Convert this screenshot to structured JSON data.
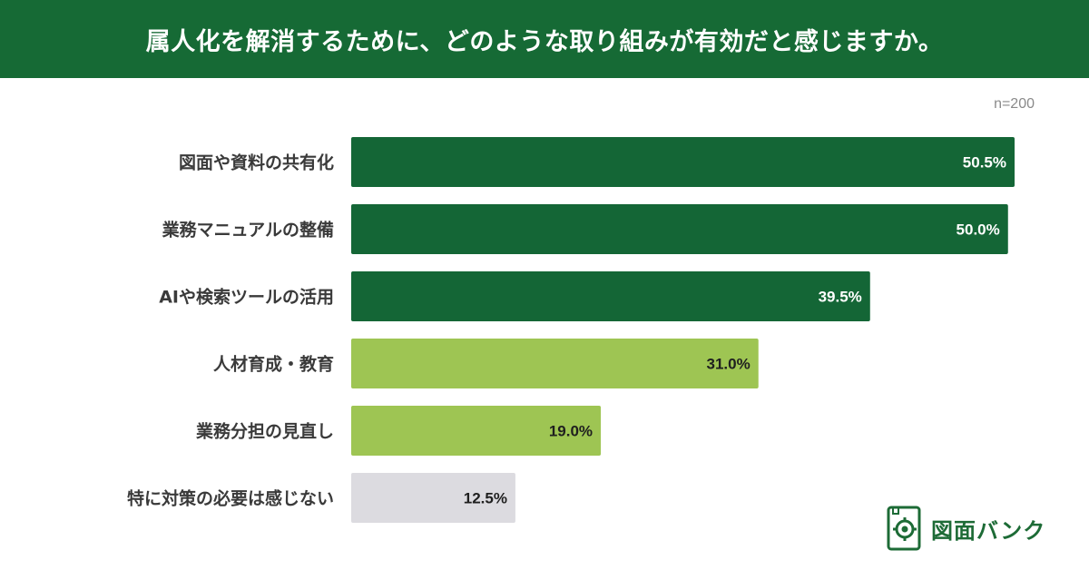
{
  "title": "属人化を解消するために、どのような取り組みが有効だと感じますか。",
  "sample_size": "n=200",
  "logo": {
    "text": "図面バンク",
    "icon": "gear-document-icon"
  },
  "colors": {
    "title_bg": "#166a35",
    "dark_green": "#146636",
    "light_green": "#9ec553",
    "gray": "#dcdbe0"
  },
  "chart_data": {
    "type": "bar",
    "orientation": "horizontal",
    "categories": [
      "図面や資料の共有化",
      "業務マニュアルの整備",
      "AIや検索ツールの活用",
      "人材育成・教育",
      "業務分担の見直し",
      "特に対策の必要は感じない"
    ],
    "values": [
      50.5,
      50.0,
      39.5,
      31.0,
      19.0,
      12.5
    ],
    "value_labels": [
      "50.5%",
      "50.0%",
      "39.5%",
      "31.0%",
      "19.0%",
      "12.5%"
    ],
    "bar_colors": [
      "#146636",
      "#146636",
      "#146636",
      "#9ec553",
      "#9ec553",
      "#dcdbe0"
    ],
    "label_colors": [
      "#ffffff",
      "#ffffff",
      "#ffffff",
      "#1f1f1f",
      "#1f1f1f",
      "#1f1f1f"
    ],
    "title": "属人化を解消するために、どのような取り組みが有効だと感じますか。",
    "unit": "%",
    "xlim": [
      0,
      50.5
    ],
    "grid": false,
    "legend": "none"
  }
}
